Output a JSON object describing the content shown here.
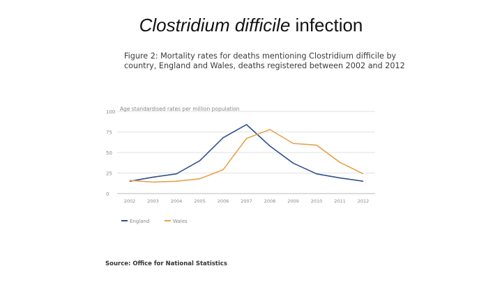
{
  "slide": {
    "title_italic": "Clostridium difficile",
    "title_rest": " infection"
  },
  "figure": {
    "title_line1": "Figure 2: Mortality rates for deaths mentioning Clostridium difficile by",
    "title_line2": "country, England and Wales, deaths registered between 2002 and 2012",
    "source": "Source: Office for National Statistics"
  },
  "chart_data": {
    "type": "line",
    "title": "Figure 2: Mortality rates for deaths mentioning Clostridium difficile by country, England and Wales, deaths registered between 2002 and 2012",
    "ylabel": "Age standardised rates per million population",
    "xlabel": "",
    "x": [
      "2002",
      "2003",
      "2004",
      "2005",
      "2006",
      "2007",
      "2008",
      "2009",
      "2010",
      "2011",
      "2012"
    ],
    "yticks": [
      "0",
      "25",
      "50",
      "75",
      "100"
    ],
    "ylim": [
      0,
      100
    ],
    "grid": true,
    "legend_position": "bottom-left",
    "series": [
      {
        "name": "England",
        "color": "#2f4f8f",
        "values": [
          15,
          20,
          24,
          40,
          68,
          84,
          58,
          37,
          24,
          19,
          15
        ]
      },
      {
        "name": "Wales",
        "color": "#e8a048",
        "values": [
          16,
          14,
          15,
          18,
          29,
          67,
          78,
          61,
          59,
          38,
          24
        ]
      }
    ]
  }
}
